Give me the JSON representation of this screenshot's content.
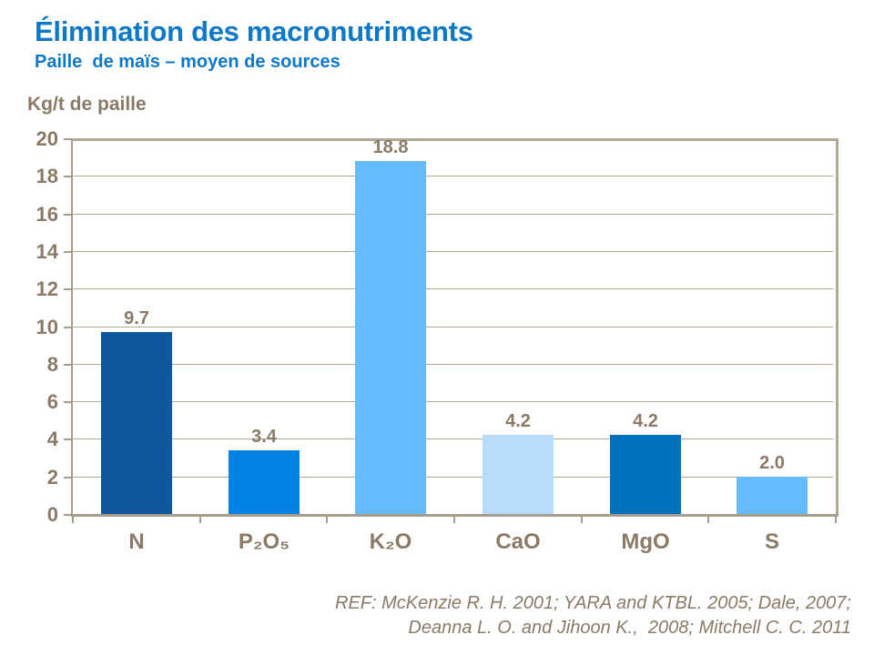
{
  "header": {
    "title": "Élimination des macronutriments",
    "subtitle": "Paille  de maïs – moyen de sources"
  },
  "chart_data": {
    "type": "bar",
    "title": "Élimination des macronutriments",
    "subtitle": "Paille de maïs – moyen de sources",
    "ylabel": "Kg/t de paille",
    "xlabel": "",
    "categories": [
      "N",
      "P₂O₅",
      "K₂O",
      "CaO",
      "MgO",
      "S"
    ],
    "values": [
      9.7,
      3.4,
      18.8,
      4.2,
      4.2,
      2.0
    ],
    "value_labels": [
      "9.7",
      "3.4",
      "18.8",
      "4.2",
      "4.2",
      "2.0"
    ],
    "bar_colors": [
      "#0d589c",
      "#0283e3",
      "#66bbff",
      "#b8ddfc",
      "#0071bd",
      "#66bbff"
    ],
    "ylim": [
      0,
      20
    ],
    "ytick_step": 2,
    "grid": true,
    "legend": false
  },
  "footer": {
    "line1": "REF: McKenzie R. H. 2001; YARA and KTBL. 2005; Dale, 2007;",
    "line2": "Deanna L. O. and Jihoon K.,  2008; Mitchell C. C. 2011"
  },
  "colors": {
    "title_blue": "#0d78c8",
    "axis_text": "#8a7a66",
    "axis_line": "#a89d8d",
    "gridline": "#b3a795",
    "background": "#ffffff"
  }
}
